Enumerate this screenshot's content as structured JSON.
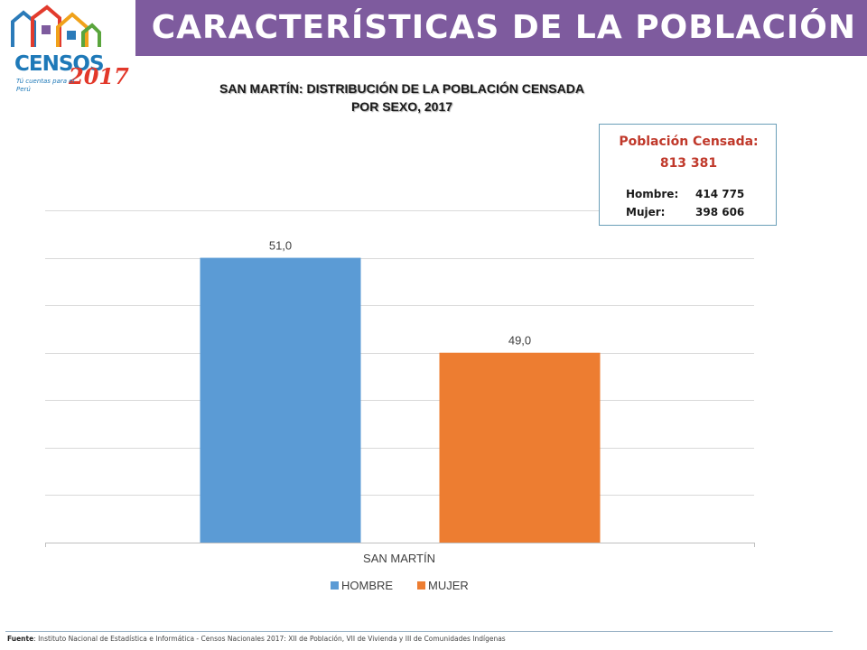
{
  "header": {
    "title": "CARACTERÍSTICAS DE LA POBLACIÓN"
  },
  "logo": {
    "name": "CENSOS",
    "year": "2017",
    "tagline": "Tú cuentas para el Perú"
  },
  "info_box": {
    "title": "Población Censada:",
    "total": "813 381",
    "rows": [
      {
        "label": "Hombre:",
        "value": "414 775"
      },
      {
        "label": "Mujer:",
        "value": "398 606"
      }
    ]
  },
  "footer": {
    "label": "Fuente",
    "text": ": Instituto Nacional de Estadística e Informática - Censos Nacionales 2017: XII de Población, VII de Vivienda y III de Comunidades Indígenas"
  },
  "colors": {
    "header_bg": "#7e5b9e",
    "hombre": "#5b9bd5",
    "mujer": "#ed7d31",
    "info_title": "#c0392b"
  },
  "chart_data": {
    "type": "bar",
    "title": "SAN MARTÍN: DISTRIBUCIÓN DE LA POBLACIÓN CENSADA\nPOR SEXO, 2017",
    "title_lines": [
      "SAN MARTÍN: DISTRIBUCIÓN DE LA POBLACIÓN CENSADA",
      "POR SEXO, 2017"
    ],
    "categories": [
      "SAN MARTÍN"
    ],
    "series": [
      {
        "name": "HOMBRE",
        "values": [
          51.0
        ],
        "label": "51,0",
        "color": "#5b9bd5"
      },
      {
        "name": "MUJER",
        "values": [
          49.0
        ],
        "label": "49,0",
        "color": "#ed7d31"
      }
    ],
    "ylim": [
      45,
      52
    ],
    "y_gridlines": [
      46,
      47,
      48,
      49,
      50,
      51,
      52
    ],
    "grid": true,
    "legend": "bottom",
    "xlabel": "",
    "ylabel": ""
  }
}
